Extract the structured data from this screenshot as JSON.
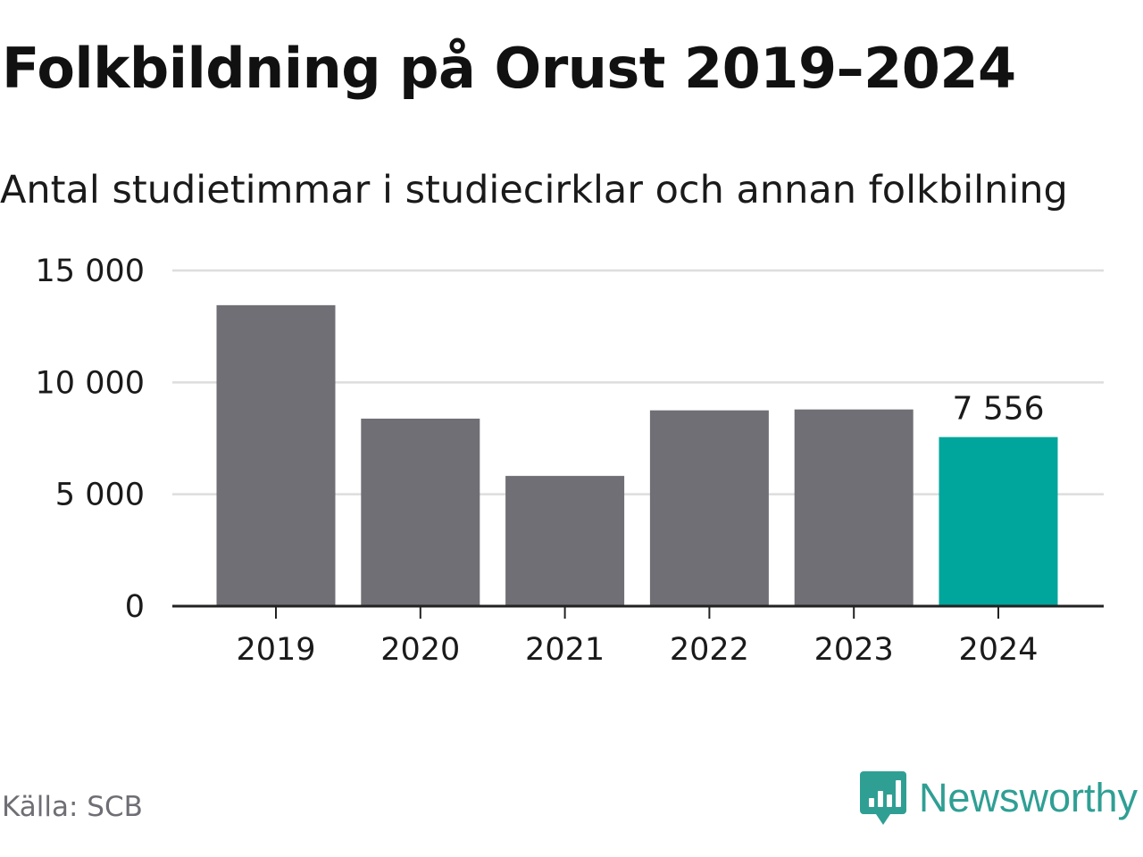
{
  "title": "Folkbildning på Orust 2019–2024",
  "subtitle": "Antal studietimmar i studiecirklar och annan folkbilning",
  "source": "Källa: SCB",
  "brand": {
    "name": "Newsworthy",
    "icon": "newsworthy-logo-icon"
  },
  "colors": {
    "bar": "#706f75",
    "highlight": "#00a59b",
    "grid": "#dddddd",
    "axis": "#222222",
    "brand": "#2f9f94"
  },
  "chart_data": {
    "type": "bar",
    "categories": [
      "2019",
      "2020",
      "2021",
      "2022",
      "2023",
      "2024"
    ],
    "values": [
      13450,
      8380,
      5820,
      8750,
      8790,
      7556
    ],
    "highlight_index": 5,
    "data_labels": [
      {
        "index": 5,
        "text": "7 556"
      }
    ],
    "y_ticks": [
      0,
      5000,
      10000,
      15000
    ],
    "y_tick_labels": [
      "0",
      "5 000",
      "10 000",
      "15 000"
    ],
    "ylim": [
      0,
      15000
    ],
    "grid": true,
    "legend": false,
    "xlabel": "",
    "ylabel": ""
  }
}
